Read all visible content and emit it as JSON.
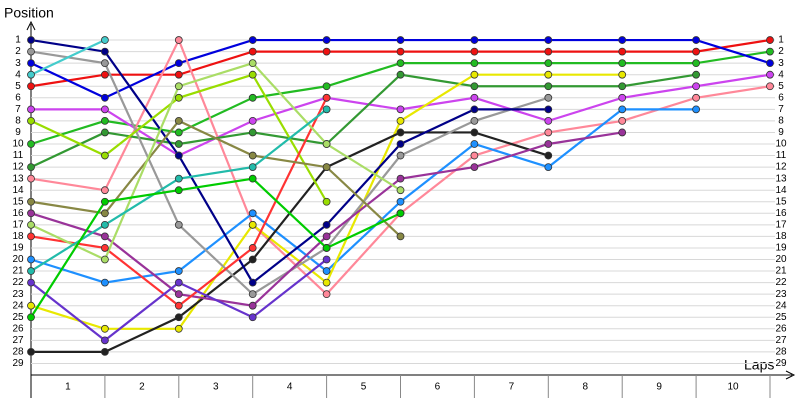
{
  "chart_data": {
    "type": "line",
    "y_axis_label": "Position",
    "x_axis_label": "Laps",
    "x": [
      0,
      1,
      2,
      3,
      4,
      5,
      6,
      7,
      8,
      9,
      10
    ],
    "xlim": [
      0,
      10
    ],
    "xticks": [
      1,
      2,
      3,
      4,
      5,
      6,
      7,
      8,
      9,
      10
    ],
    "ylim": [
      30,
      0
    ],
    "yticks": [
      1,
      2,
      3,
      4,
      5,
      6,
      7,
      8,
      9,
      10,
      11,
      12,
      13,
      14,
      15,
      16,
      17,
      18,
      19,
      20,
      21,
      22,
      23,
      24,
      25,
      26,
      27,
      28,
      29
    ],
    "grid": true,
    "series": [
      {
        "color": "#ee1111",
        "values": [
          5,
          4,
          4,
          2,
          2,
          2,
          2,
          2,
          2,
          2,
          1
        ]
      },
      {
        "color": "#22bb22",
        "values": [
          10,
          8,
          9,
          6,
          5,
          3,
          3,
          3,
          3,
          3,
          2
        ]
      },
      {
        "color": "#0000dd",
        "values": [
          3,
          6,
          3,
          1,
          1,
          1,
          1,
          1,
          1,
          1,
          3
        ]
      },
      {
        "color": "#cc44ee",
        "values": [
          7,
          7,
          11,
          8,
          6,
          7,
          6,
          8,
          6,
          5,
          4
        ]
      },
      {
        "color": "#ff8899",
        "values": [
          13,
          14,
          1,
          17,
          23,
          16,
          11,
          9,
          8,
          6,
          5
        ]
      },
      {
        "color": "#1e90ff",
        "values": [
          20,
          22,
          21,
          16,
          21,
          15,
          10,
          12,
          7,
          7,
          null
        ]
      },
      {
        "color": "#339933",
        "values": [
          12,
          9,
          10,
          9,
          10,
          4,
          5,
          5,
          5,
          4,
          null
        ]
      },
      {
        "color": "#e8e800",
        "values": [
          24,
          26,
          26,
          17,
          22,
          8,
          4,
          4,
          4,
          null,
          null
        ]
      },
      {
        "color": "#222222",
        "values": [
          28,
          28,
          25,
          20,
          12,
          9,
          9,
          11,
          null,
          null,
          null
        ]
      },
      {
        "color": "#999999",
        "values": [
          2,
          3,
          17,
          23,
          19,
          11,
          8,
          6,
          null,
          null,
          null
        ]
      },
      {
        "color": "#993399",
        "values": [
          16,
          18,
          23,
          24,
          18,
          13,
          12,
          10,
          9,
          null,
          null
        ]
      },
      {
        "color": "#000088",
        "values": [
          1,
          2,
          11,
          22,
          17,
          10,
          7,
          7,
          null,
          null,
          null
        ]
      },
      {
        "color": "#44cccc",
        "values": [
          4,
          1,
          null,
          null,
          null,
          null,
          null,
          null,
          null,
          null,
          null
        ]
      },
      {
        "color": "#99dd00",
        "values": [
          8,
          11,
          6,
          4,
          15,
          null,
          null,
          null,
          null,
          null,
          null
        ]
      },
      {
        "color": "#ff3333",
        "values": [
          18,
          19,
          24,
          19,
          6,
          null,
          null,
          null,
          null,
          null,
          null
        ]
      },
      {
        "color": "#888844",
        "values": [
          15,
          16,
          8,
          11,
          12,
          18,
          null,
          null,
          null,
          null,
          null
        ]
      },
      {
        "color": "#aadd66",
        "values": [
          17,
          20,
          5,
          3,
          10,
          14,
          null,
          null,
          null,
          null,
          null
        ]
      },
      {
        "color": "#22bbaa",
        "values": [
          21,
          17,
          13,
          12,
          7,
          null,
          null,
          null,
          null,
          null,
          null
        ]
      },
      {
        "color": "#6633cc",
        "values": [
          22,
          27,
          22,
          25,
          20,
          null,
          null,
          null,
          null,
          null,
          null
        ]
      },
      {
        "color": "#00cc00",
        "values": [
          25,
          15,
          14,
          13,
          19,
          16,
          null,
          null,
          null,
          null,
          null
        ]
      }
    ]
  }
}
